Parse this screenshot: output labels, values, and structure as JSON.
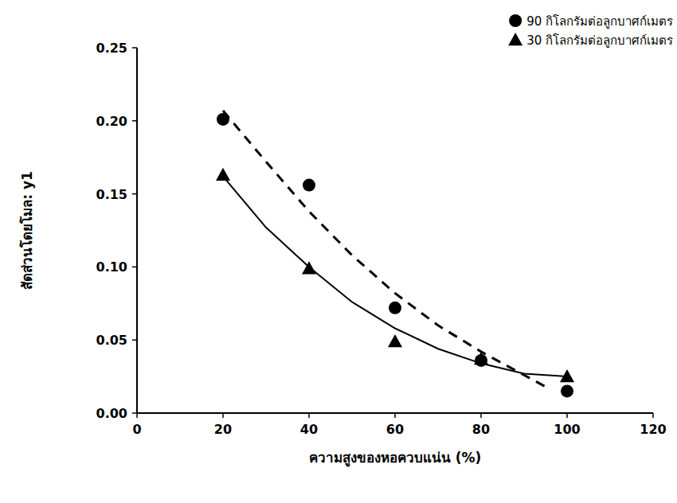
{
  "chart_data": {
    "type": "scatter",
    "x_label": "ความสูงของหอควบแน่น (%)",
    "y_label": "สัดส่วนโดยโมล: y1",
    "xlim": [
      0,
      120
    ],
    "xticks": [
      0,
      20,
      40,
      60,
      80,
      100,
      120
    ],
    "ylim": [
      0,
      0.25
    ],
    "yticks": [
      {
        "value": 0,
        "label": "0.00"
      },
      0.05,
      {
        "value": 0.1,
        "label": "0.10"
      },
      0.15,
      {
        "value": 0.2,
        "label": "0.20"
      },
      0.25
    ],
    "grid": false,
    "legend": "top-right",
    "series": [
      {
        "name": "90 กิโลกรัมต่อลูกบาศก์เมตร",
        "type": "scatter",
        "marker": "circle",
        "color": "#000000",
        "x": [
          20,
          40,
          60,
          80,
          100
        ],
        "values": [
          0.201,
          0.156,
          0.072,
          0.036,
          0.015
        ]
      },
      {
        "name": "30 กิโลกรัมต่อลูกบาศก์เมตร",
        "type": "scatter",
        "marker": "triangle",
        "color": "#000000",
        "x": [
          20,
          40,
          60,
          80,
          100
        ],
        "values": [
          0.163,
          0.099,
          0.049,
          0.037,
          0.025
        ]
      },
      {
        "type": "line",
        "line_style": "dashed",
        "marker": "none",
        "color": "#000000",
        "x": [
          20,
          30,
          40,
          50,
          60,
          70,
          80,
          90,
          95
        ],
        "values": [
          0.207,
          0.172,
          0.138,
          0.108,
          0.082,
          0.06,
          0.042,
          0.026,
          0.018
        ]
      },
      {
        "type": "line",
        "line_style": "solid",
        "marker": "none",
        "color": "#000000",
        "x": [
          20,
          30,
          40,
          50,
          60,
          70,
          80,
          90,
          100
        ],
        "values": [
          0.162,
          0.127,
          0.1,
          0.076,
          0.058,
          0.044,
          0.034,
          0.027,
          0.025
        ]
      }
    ]
  }
}
